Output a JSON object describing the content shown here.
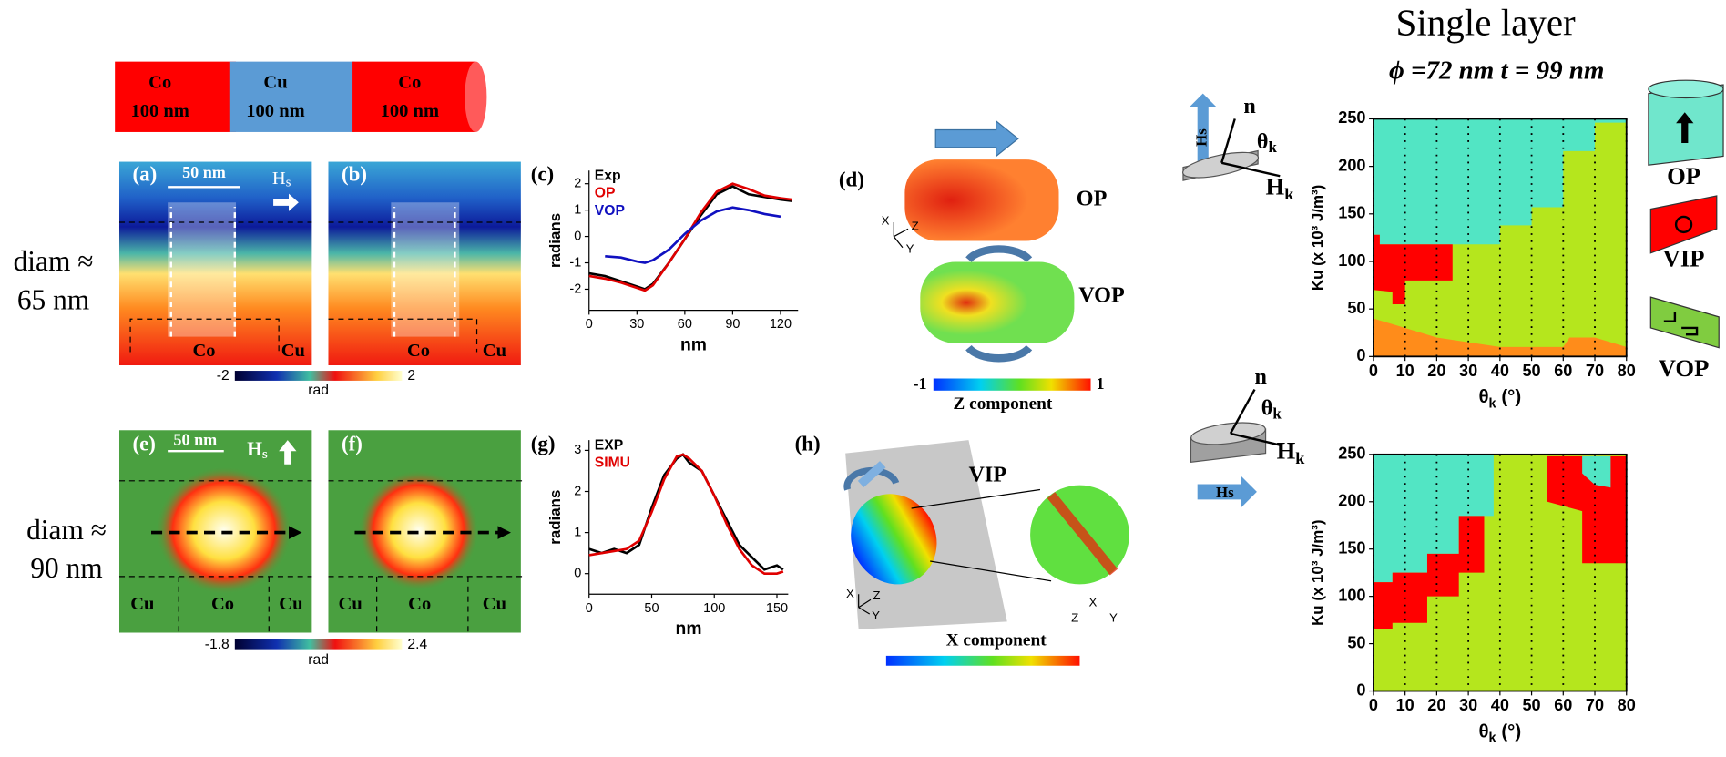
{
  "wire": {
    "segments": [
      {
        "material": "Co",
        "length": "100 nm"
      },
      {
        "material": "Cu",
        "length": "100 nm"
      },
      {
        "material": "Co",
        "length": "100 nm"
      }
    ]
  },
  "rows": [
    {
      "label": "diam ≈",
      "value": "65 nm"
    },
    {
      "label": "diam ≈",
      "value": "90 nm"
    }
  ],
  "panels": {
    "a": "(a)",
    "b": "(b)",
    "c": "(c)",
    "d": "(d)",
    "e": "(e)",
    "f": "(f)",
    "g": "(g)",
    "h": "(h)"
  },
  "scale_bar": "50 nm",
  "field": {
    "symbol": "H",
    "sub": "s"
  },
  "material_labels": {
    "co": "Co",
    "cu": "Cu"
  },
  "colorbar_top": {
    "min": -2,
    "max": 2,
    "label": "rad"
  },
  "colorbar_bottom": {
    "min": -1.8,
    "max": 2.4,
    "label": "rad"
  },
  "sim": {
    "op": "OP",
    "vop": "VOP",
    "vip": "VIP",
    "z_title": "Z component",
    "x_title": "X component",
    "z_min": -1,
    "z_max": 1,
    "axes": {
      "x": "X",
      "y": "Y",
      "z": "Z"
    }
  },
  "single_layer": {
    "title": "Single layer",
    "params": "ϕ =72 nm t = 99 nm"
  },
  "geometry": {
    "n": "n",
    "theta": "θ",
    "theta_sub": "k",
    "h": "H",
    "h_sub": "k",
    "hs": "Hs"
  },
  "chart_data": [
    {
      "type": "line",
      "xlabel": "nm",
      "ylabel": "radians",
      "xlim": [
        0,
        131
      ],
      "xticks": [
        0,
        30,
        60,
        90,
        120
      ],
      "ylim": [
        -2.8,
        2.5
      ],
      "yticks": [
        -2,
        -1,
        0,
        1,
        2
      ],
      "legend": "upper-left",
      "x": [
        0,
        10,
        20,
        30,
        35,
        40,
        50,
        60,
        70,
        80,
        90,
        100,
        110,
        120,
        127
      ],
      "series": [
        {
          "name": "Exp",
          "color": "#000000",
          "values": [
            -1.4,
            -1.5,
            -1.7,
            -1.9,
            -2.0,
            -1.8,
            -1.0,
            -0.1,
            0.8,
            1.6,
            1.9,
            1.6,
            1.5,
            1.4,
            1.35
          ]
        },
        {
          "name": "OP",
          "color": "#e00000",
          "values": [
            -1.5,
            -1.6,
            -1.75,
            -1.95,
            -2.05,
            -1.85,
            -1.0,
            -0.1,
            0.9,
            1.7,
            2.0,
            1.8,
            1.55,
            1.45,
            1.4
          ]
        },
        {
          "name": "VOP",
          "color": "#1010c0",
          "values": [
            null,
            -0.75,
            -0.8,
            -0.95,
            -1.0,
            -0.9,
            -0.5,
            0.1,
            0.6,
            0.95,
            1.1,
            1.0,
            0.85,
            0.75,
            null
          ]
        }
      ]
    },
    {
      "type": "line",
      "xlabel": "nm",
      "ylabel": "radians",
      "xlim": [
        0,
        159
      ],
      "xticks": [
        0,
        50,
        100,
        150
      ],
      "ylim": [
        -0.5,
        3.25
      ],
      "yticks": [
        0,
        1,
        2,
        3
      ],
      "legend": "upper-left",
      "x": [
        0,
        10,
        20,
        30,
        40,
        50,
        60,
        70,
        75,
        80,
        90,
        100,
        110,
        120,
        130,
        140,
        150,
        155
      ],
      "series": [
        {
          "name": "EXP",
          "color": "#000000",
          "values": [
            0.6,
            0.5,
            0.6,
            0.5,
            0.7,
            1.6,
            2.4,
            2.8,
            2.9,
            2.7,
            2.5,
            1.9,
            1.3,
            0.7,
            0.4,
            0.1,
            0.2,
            0.1
          ]
        },
        {
          "name": "SIMU",
          "color": "#e00000",
          "values": [
            0.45,
            0.5,
            0.55,
            0.6,
            0.8,
            1.5,
            2.3,
            2.85,
            2.9,
            2.8,
            2.5,
            1.9,
            1.2,
            0.6,
            0.2,
            0.0,
            0.0,
            0.05
          ]
        }
      ]
    },
    {
      "type": "phase",
      "xlabel": {
        "main": "θ",
        "sub": "k",
        "unit": " (°)"
      },
      "ylabel": "Ku (x 10³ J/m³)",
      "xlim": [
        0,
        80
      ],
      "xticks": [
        0,
        10,
        20,
        30,
        40,
        50,
        60,
        70,
        80
      ],
      "ylim": [
        0,
        250
      ],
      "yticks": [
        0,
        50,
        100,
        150,
        200,
        250
      ],
      "grid": true,
      "regions": [
        {
          "name": "VOP",
          "color": "#b5e61d",
          "polygon": [
            [
              0,
              0
            ],
            [
              80,
              0
            ],
            [
              80,
              250
            ],
            [
              0,
              250
            ]
          ]
        },
        {
          "name": "OP",
          "color": "#52e5c4",
          "polygon": [
            [
              0,
              250
            ],
            [
              80,
              250
            ],
            [
              80,
              246
            ],
            [
              70,
              246
            ],
            [
              70,
              216
            ],
            [
              60,
              216
            ],
            [
              60,
              157
            ],
            [
              50,
              157
            ],
            [
              50,
              138
            ],
            [
              40,
              138
            ],
            [
              40,
              118
            ],
            [
              2,
              118
            ],
            [
              2,
              128
            ],
            [
              0,
              128
            ]
          ]
        },
        {
          "name": "VIP",
          "color": "#ff0000",
          "polygon": [
            [
              0,
              128
            ],
            [
              2,
              128
            ],
            [
              2,
              118
            ],
            [
              25,
              118
            ],
            [
              25,
              80
            ],
            [
              10,
              80
            ],
            [
              10,
              55
            ],
            [
              6,
              55
            ],
            [
              6,
              68
            ],
            [
              0,
              70
            ]
          ]
        },
        {
          "color": "#ff8c1a",
          "polygon": [
            [
              0,
              0
            ],
            [
              0,
              40
            ],
            [
              10,
              30
            ],
            [
              20,
              20
            ],
            [
              40,
              10
            ],
            [
              60,
              10
            ],
            [
              62,
              20
            ],
            [
              70,
              20
            ],
            [
              80,
              10
            ],
            [
              80,
              0
            ]
          ]
        }
      ]
    },
    {
      "type": "phase",
      "xlabel": {
        "main": "θ",
        "sub": "k",
        "unit": " (°)"
      },
      "ylabel": "Ku (x 10³ J/m³)",
      "xlim": [
        0,
        80
      ],
      "xticks": [
        0,
        10,
        20,
        30,
        40,
        50,
        60,
        70,
        80
      ],
      "ylim": [
        0,
        250
      ],
      "yticks": [
        0,
        50,
        100,
        150,
        200,
        250
      ],
      "grid": true,
      "regions": [
        {
          "color": "#b5e61d",
          "polygon": [
            [
              0,
              0
            ],
            [
              80,
              0
            ],
            [
              80,
              250
            ],
            [
              0,
              250
            ]
          ]
        },
        {
          "color": "#52e5c4",
          "polygon": [
            [
              0,
              250
            ],
            [
              38,
              250
            ],
            [
              38,
              185
            ],
            [
              27,
              185
            ],
            [
              27,
              145
            ],
            [
              17,
              145
            ],
            [
              17,
              125
            ],
            [
              6,
              125
            ],
            [
              6,
              115
            ],
            [
              0,
              115
            ]
          ]
        },
        {
          "color": "#ff0000",
          "polygon": [
            [
              0,
              65
            ],
            [
              0,
              115
            ],
            [
              6,
              115
            ],
            [
              6,
              125
            ],
            [
              17,
              125
            ],
            [
              17,
              145
            ],
            [
              27,
              145
            ],
            [
              27,
              185
            ],
            [
              35,
              185
            ],
            [
              35,
              125
            ],
            [
              27,
              125
            ],
            [
              27,
              100
            ],
            [
              17,
              100
            ],
            [
              17,
              72
            ],
            [
              6,
              72
            ],
            [
              6,
              65
            ]
          ]
        },
        {
          "color": "#ff0000",
          "polygon": [
            [
              55,
              248
            ],
            [
              80,
              248
            ],
            [
              80,
              135
            ],
            [
              66,
              135
            ],
            [
              66,
              190
            ],
            [
              55,
              200
            ]
          ]
        },
        {
          "color": "#52e5c4",
          "polygon": [
            [
              66,
              248
            ],
            [
              75,
              248
            ],
            [
              75,
              215
            ],
            [
              70,
              218
            ],
            [
              66,
              230
            ]
          ]
        }
      ]
    }
  ]
}
